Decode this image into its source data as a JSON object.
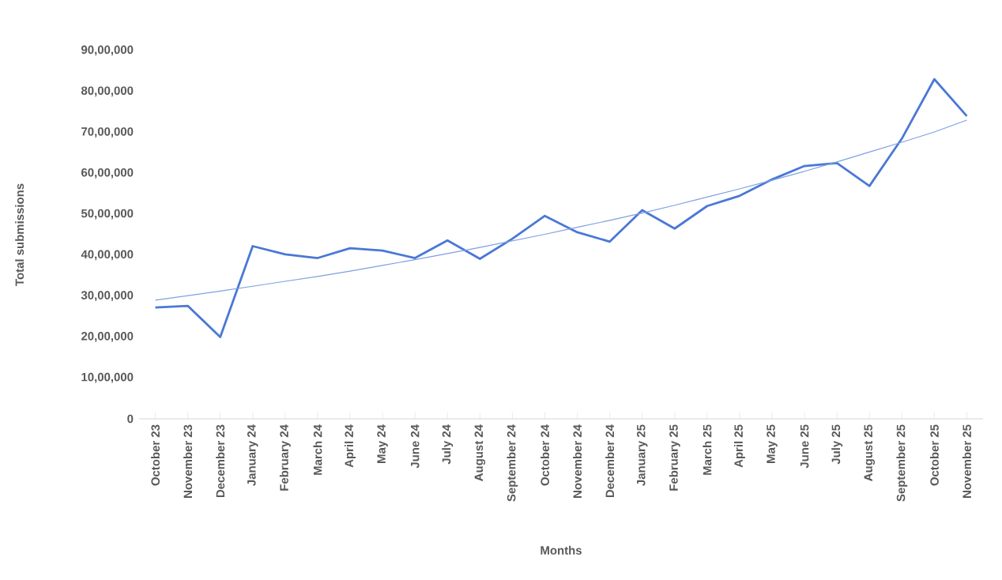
{
  "chart_data": {
    "type": "line",
    "xlabel": "Months",
    "ylabel": "Total submissions",
    "categories": [
      "October 23",
      "November 23",
      "December 23",
      "January 24",
      "February 24",
      "March 24",
      "April 24",
      "May 24",
      "June 24",
      "July 24",
      "August 24",
      "September 24",
      "October 24",
      "November 24",
      "December 24",
      "January 25",
      "February 25",
      "March 25",
      "April 25",
      "May 25",
      "June 25",
      "July 25",
      "August 25",
      "September 25",
      "October 25",
      "November 25"
    ],
    "series": [
      {
        "color": "#4a78d6",
        "values": [
          2720000,
          2760000,
          2000000,
          4220000,
          4020000,
          3930000,
          4170000,
          4110000,
          3930000,
          4360000,
          3910000,
          4400000,
          4960000,
          4560000,
          4330000,
          5100000,
          4650000,
          5200000,
          5450000,
          5850000,
          6180000,
          6250000,
          5690000,
          6850000,
          8300000,
          7400000
        ]
      },
      {
        "type": "line",
        "color": "#7f9fe3",
        "values": [
          2900000,
          3010000,
          3120000,
          3240000,
          3360000,
          3480000,
          3610000,
          3750000,
          3890000,
          4040000,
          4190000,
          4350000,
          4510000,
          4680000,
          4850000,
          5030000,
          5220000,
          5420000,
          5620000,
          5830000,
          6050000,
          6280000,
          6520000,
          6760000,
          7010000,
          7300000
        ]
      }
    ],
    "ylim": [
      0,
      9000000
    ],
    "yticks": [
      {
        "value": 0,
        "label": "0"
      },
      {
        "value": 1000000,
        "label": "10,00,000"
      },
      {
        "value": 2000000,
        "label": "20,00,000"
      },
      {
        "value": 3000000,
        "label": "30,00,000"
      },
      {
        "value": 4000000,
        "label": "40,00,000"
      },
      {
        "value": 5000000,
        "label": "50,00,000"
      },
      {
        "value": 6000000,
        "label": "60,00,000"
      },
      {
        "value": 7000000,
        "label": "70,00,000"
      },
      {
        "value": 8000000,
        "label": "80,00,000"
      },
      {
        "value": 9000000,
        "label": "90,00,000"
      }
    ],
    "marker": "none",
    "line_style": "solid"
  }
}
